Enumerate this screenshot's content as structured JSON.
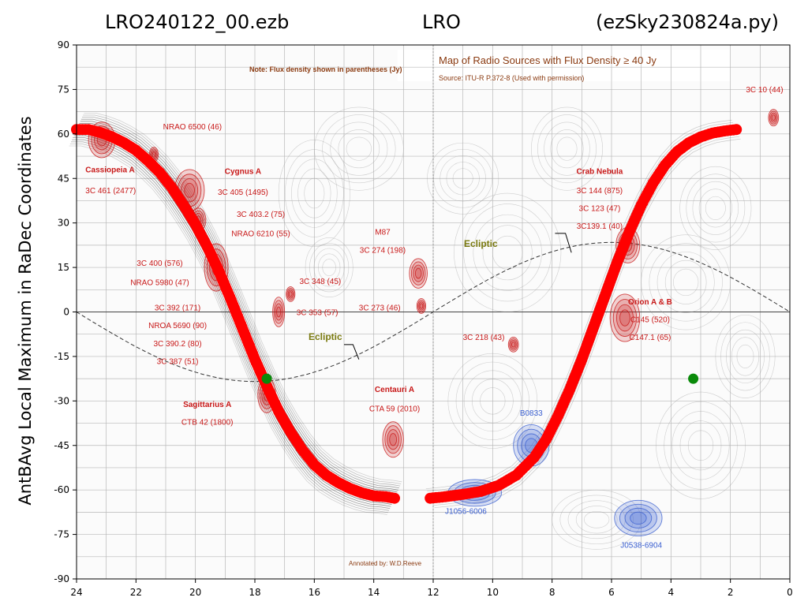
{
  "header": {
    "left": "LRO240122_00.ezb",
    "center": "LRO",
    "right": "(ezSky230824a.py)"
  },
  "colors": {
    "track": "#ff0000",
    "marker": "#0a8a0a",
    "source_red": "#c81818",
    "source_blue": "#3a5fd0"
  },
  "background_map": {
    "note": "Note: Flux density shown in parentheses (Jy)",
    "title": "Map of Radio Sources with Flux Density ≥ 40 Jy",
    "source": "Source: ITU-R P.372-8 (Used with permission)",
    "annotated_by": "Annotated by: W.D.Reeve",
    "ecliptic_label": "Ecliptic",
    "labels": [
      {
        "id": "cassiopeia-name",
        "text": "Cassiopeia A",
        "ra": 23.7,
        "dec": 47,
        "style": "bold",
        "anchor": "start"
      },
      {
        "id": "cassiopeia-flux",
        "text": "3C 461 (2477)",
        "ra": 23.7,
        "dec": 40,
        "style": "normal",
        "anchor": "start"
      },
      {
        "id": "nrao6500",
        "text": "NRAO 6500 (46)",
        "ra": 20.1,
        "dec": 61.5,
        "style": "normal",
        "anchor": "middle"
      },
      {
        "id": "cygnus-name",
        "text": "Cygnus A",
        "ra": 18.4,
        "dec": 46.5,
        "style": "bold",
        "anchor": "middle"
      },
      {
        "id": "cygnus-flux",
        "text": "3C 405 (1495)",
        "ra": 18.4,
        "dec": 39.5,
        "style": "normal",
        "anchor": "middle"
      },
      {
        "id": "3c403",
        "text": "3C 403.2 (75)",
        "ra": 17.8,
        "dec": 32,
        "style": "normal",
        "anchor": "middle"
      },
      {
        "id": "nrao6210",
        "text": "NRAO 6210 (55)",
        "ra": 17.8,
        "dec": 25.5,
        "style": "normal",
        "anchor": "middle"
      },
      {
        "id": "3c400",
        "text": "3C 400 (576)",
        "ra": 21.2,
        "dec": 15.5,
        "style": "normal",
        "anchor": "middle"
      },
      {
        "id": "nrao5980",
        "text": "NRAO 5980 (47)",
        "ra": 21.2,
        "dec": 9,
        "style": "normal",
        "anchor": "middle"
      },
      {
        "id": "3c348",
        "text": "3C 348 (45)",
        "ra": 15.8,
        "dec": 9.5,
        "style": "normal",
        "anchor": "middle"
      },
      {
        "id": "3c353",
        "text": "3C 353 (57)",
        "ra": 15.9,
        "dec": -1,
        "style": "normal",
        "anchor": "middle"
      },
      {
        "id": "3c392",
        "text": "3C 392 (171)",
        "ra": 20.6,
        "dec": 0.5,
        "style": "normal",
        "anchor": "middle"
      },
      {
        "id": "nroa5690",
        "text": "NROA 5690 (90)",
        "ra": 20.6,
        "dec": -5.5,
        "style": "normal",
        "anchor": "middle"
      },
      {
        "id": "3c390",
        "text": "3C 390.2 (80)",
        "ra": 20.6,
        "dec": -11.5,
        "style": "normal",
        "anchor": "middle"
      },
      {
        "id": "3c387",
        "text": "3C 387 (51)",
        "ra": 20.6,
        "dec": -17.5,
        "style": "normal",
        "anchor": "middle"
      },
      {
        "id": "sagittarius-name",
        "text": "Sagittarius A",
        "ra": 19.6,
        "dec": -32,
        "style": "bold",
        "anchor": "middle"
      },
      {
        "id": "sagittarius-flux",
        "text": "CTB 42 (1800)",
        "ra": 19.6,
        "dec": -38,
        "style": "normal",
        "anchor": "middle"
      },
      {
        "id": "m87-name",
        "text": "M87",
        "ra": 13.7,
        "dec": 26,
        "style": "normal",
        "anchor": "middle"
      },
      {
        "id": "m87-flux",
        "text": "3C 274 (198)",
        "ra": 13.7,
        "dec": 20,
        "style": "normal",
        "anchor": "middle"
      },
      {
        "id": "3c273",
        "text": "3C 273 (46)",
        "ra": 13.8,
        "dec": 0.5,
        "style": "normal",
        "anchor": "middle"
      },
      {
        "id": "centauri-name",
        "text": "Centauri A",
        "ra": 13.3,
        "dec": -27,
        "style": "bold",
        "anchor": "middle"
      },
      {
        "id": "centauri-flux",
        "text": "CTA 59 (2010)",
        "ra": 13.3,
        "dec": -33.5,
        "style": "normal",
        "anchor": "middle"
      },
      {
        "id": "3c218",
        "text": "3C 218 (43)",
        "ra": 10.3,
        "dec": -9.5,
        "style": "normal",
        "anchor": "middle"
      },
      {
        "id": "3c10",
        "text": "3C 10 (44)",
        "ra": 0.85,
        "dec": 74,
        "style": "normal",
        "anchor": "middle"
      },
      {
        "id": "crab-name",
        "text": "Crab Nebula",
        "ra": 6.4,
        "dec": 46.5,
        "style": "bold",
        "anchor": "middle"
      },
      {
        "id": "crab-3c144",
        "text": "3C 144 (875)",
        "ra": 6.4,
        "dec": 40,
        "style": "normal",
        "anchor": "middle"
      },
      {
        "id": "crab-3c123",
        "text": "3C 123 (47)",
        "ra": 6.4,
        "dec": 34,
        "style": "normal",
        "anchor": "middle"
      },
      {
        "id": "crab-3c139",
        "text": "3C139.1 (40)",
        "ra": 6.4,
        "dec": 28,
        "style": "normal",
        "anchor": "middle"
      },
      {
        "id": "orion-name",
        "text": "Orion A & B",
        "ra": 4.7,
        "dec": 2.5,
        "style": "bold",
        "anchor": "middle"
      },
      {
        "id": "orion-c145",
        "text": "C145 (520)",
        "ra": 4.7,
        "dec": -3.5,
        "style": "normal",
        "anchor": "middle"
      },
      {
        "id": "orion-c147",
        "text": "C147.1 (65)",
        "ra": 4.7,
        "dec": -9.5,
        "style": "normal",
        "anchor": "middle"
      },
      {
        "id": "b0833",
        "text": "B0833",
        "ra": 8.7,
        "dec": -35,
        "style": "blue",
        "anchor": "middle"
      },
      {
        "id": "j1056",
        "text": "J1056-6006",
        "ra": 10.9,
        "dec": -68,
        "style": "blue",
        "anchor": "middle"
      },
      {
        "id": "j0538",
        "text": "J0538-6904",
        "ra": 5.0,
        "dec": -79.5,
        "style": "blue",
        "anchor": "middle"
      }
    ],
    "blobs": [
      {
        "ra": 23.15,
        "dec": 58,
        "rx": 0.45,
        "ry": 6,
        "color": "red"
      },
      {
        "ra": 21.4,
        "dec": 53,
        "rx": 0.15,
        "ry": 2.5,
        "color": "red"
      },
      {
        "ra": 20.2,
        "dec": 41,
        "rx": 0.5,
        "ry": 7,
        "color": "red"
      },
      {
        "ra": 19.9,
        "dec": 31,
        "rx": 0.25,
        "ry": 4,
        "color": "red"
      },
      {
        "ra": 19.3,
        "dec": 15,
        "rx": 0.4,
        "ry": 8,
        "color": "red"
      },
      {
        "ra": 17.2,
        "dec": 0,
        "rx": 0.2,
        "ry": 5,
        "color": "red"
      },
      {
        "ra": 16.8,
        "dec": 6,
        "rx": 0.15,
        "ry": 2.5,
        "color": "red"
      },
      {
        "ra": 17.6,
        "dec": -28,
        "rx": 0.3,
        "ry": 6,
        "color": "red"
      },
      {
        "ra": 12.5,
        "dec": 13,
        "rx": 0.3,
        "ry": 5,
        "color": "red"
      },
      {
        "ra": 12.4,
        "dec": 2,
        "rx": 0.15,
        "ry": 2.5,
        "color": "red"
      },
      {
        "ra": 13.35,
        "dec": -43,
        "rx": 0.35,
        "ry": 6,
        "color": "red"
      },
      {
        "ra": 9.3,
        "dec": -11,
        "rx": 0.17,
        "ry": 2.5,
        "color": "red"
      },
      {
        "ra": 0.55,
        "dec": 65.5,
        "rx": 0.17,
        "ry": 2.8,
        "color": "red"
      },
      {
        "ra": 5.45,
        "dec": 22.5,
        "rx": 0.4,
        "ry": 6,
        "color": "red"
      },
      {
        "ra": 5.55,
        "dec": -2,
        "rx": 0.5,
        "ry": 8,
        "color": "red"
      },
      {
        "ra": 8.7,
        "dec": -45,
        "rx": 0.6,
        "ry": 7,
        "color": "blue"
      },
      {
        "ra": 10.6,
        "dec": -61,
        "rx": 0.9,
        "ry": 4.5,
        "color": "blue"
      },
      {
        "ra": 5.1,
        "dec": -69.5,
        "rx": 0.8,
        "ry": 6,
        "color": "blue"
      }
    ]
  },
  "chart_data": {
    "type": "scatter",
    "title": "",
    "xlabel": "",
    "ylabel": "AntBAvg Local Maximum in RaDec Coordinates",
    "xlim": [
      24,
      0
    ],
    "ylim": [
      -90,
      90
    ],
    "x_ticks": [
      "24",
      "22",
      "20",
      "18",
      "16",
      "14",
      "12",
      "10",
      "8",
      "6",
      "4",
      "2",
      "0"
    ],
    "y_ticks": [
      "90",
      "75",
      "60",
      "45",
      "30",
      "15",
      "0",
      "-15",
      "-30",
      "-45",
      "-60",
      "-75",
      "-90"
    ],
    "grid": false,
    "series": [
      {
        "color": "red",
        "marker": "circle",
        "description_points_ra_dec": [
          [
            24.0,
            61.5
          ],
          [
            23.6,
            61.5
          ],
          [
            23.2,
            60.5
          ],
          [
            22.8,
            59
          ],
          [
            22.4,
            57
          ],
          [
            22.0,
            54.5
          ],
          [
            21.6,
            51
          ],
          [
            21.2,
            47
          ],
          [
            20.8,
            42
          ],
          [
            20.4,
            36
          ],
          [
            20.0,
            29.5
          ],
          [
            19.6,
            22
          ],
          [
            19.2,
            13.5
          ],
          [
            18.8,
            4
          ],
          [
            18.4,
            -6
          ],
          [
            18.0,
            -16
          ],
          [
            17.6,
            -25
          ],
          [
            17.2,
            -33.5
          ],
          [
            16.8,
            -40.5
          ],
          [
            16.4,
            -46.5
          ],
          [
            16.0,
            -51.5
          ],
          [
            15.6,
            -55
          ],
          [
            15.2,
            -57.5
          ],
          [
            14.8,
            -59.5
          ],
          [
            14.4,
            -61
          ],
          [
            14.0,
            -62
          ],
          [
            13.6,
            -62.3
          ],
          [
            13.3,
            -62.8
          ],
          [
            12.1,
            -62.8
          ],
          [
            11.6,
            -62.3
          ],
          [
            11.0,
            -61.5
          ],
          [
            10.4,
            -60.5
          ],
          [
            9.8,
            -58.5
          ],
          [
            9.2,
            -55
          ],
          [
            8.6,
            -49
          ],
          [
            8.2,
            -43
          ],
          [
            7.8,
            -35
          ],
          [
            7.4,
            -26
          ],
          [
            7.0,
            -16
          ],
          [
            6.6,
            -5
          ],
          [
            6.2,
            6
          ],
          [
            5.8,
            17
          ],
          [
            5.4,
            27
          ],
          [
            5.0,
            36
          ],
          [
            4.6,
            43.5
          ],
          [
            4.2,
            49.5
          ],
          [
            3.8,
            54
          ],
          [
            3.4,
            57
          ],
          [
            3.0,
            59
          ],
          [
            2.6,
            60.3
          ],
          [
            2.2,
            61
          ],
          [
            1.8,
            61.5
          ]
        ]
      },
      {
        "color": "green",
        "marker": "circle",
        "description_points_ra_dec": [
          [
            17.6,
            -22.5
          ],
          [
            3.25,
            -22.5
          ]
        ]
      }
    ]
  }
}
